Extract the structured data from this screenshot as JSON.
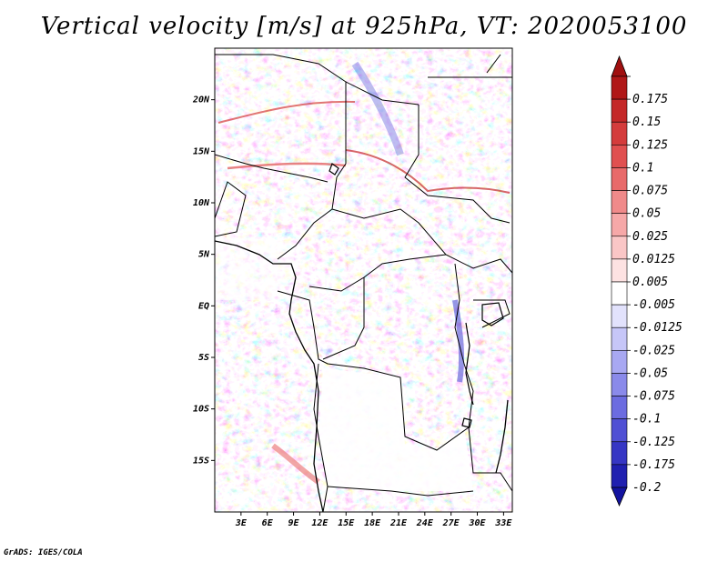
{
  "title": "Vertical velocity [m/s] at 925hPa, VT: 2020053100",
  "credit": "GrADS: IGES/COLA",
  "map": {
    "lon_range": [
      0,
      34
    ],
    "lat_range": [
      -20,
      25
    ],
    "lat_ticks": [
      {
        "lat": 20,
        "label": "20N"
      },
      {
        "lat": 15,
        "label": "15N"
      },
      {
        "lat": 10,
        "label": "10N"
      },
      {
        "lat": 5,
        "label": "5N"
      },
      {
        "lat": 0,
        "label": "EQ"
      },
      {
        "lat": -5,
        "label": "5S"
      },
      {
        "lat": -10,
        "label": "10S"
      },
      {
        "lat": -15,
        "label": "15S"
      }
    ],
    "lon_ticks": [
      {
        "lon": 3,
        "label": "3E"
      },
      {
        "lon": 6,
        "label": "6E"
      },
      {
        "lon": 9,
        "label": "9E"
      },
      {
        "lon": 12,
        "label": "12E"
      },
      {
        "lon": 15,
        "label": "15E"
      },
      {
        "lon": 18,
        "label": "18E"
      },
      {
        "lon": 21,
        "label": "21E"
      },
      {
        "lon": 24,
        "label": "24E"
      },
      {
        "lon": 27,
        "label": "27E"
      },
      {
        "lon": 30,
        "label": "30E"
      },
      {
        "lon": 33,
        "label": "33E"
      }
    ]
  },
  "colorbar": {
    "levels": [
      {
        "label": "0.175",
        "color": "#b01818"
      },
      {
        "label": "0.15",
        "color": "#c42828"
      },
      {
        "label": "0.125",
        "color": "#d43c3c"
      },
      {
        "label": "0.1",
        "color": "#e05050"
      },
      {
        "label": "0.075",
        "color": "#e86a6a"
      },
      {
        "label": "0.05",
        "color": "#f08a8a"
      },
      {
        "label": "0.025",
        "color": "#f6a8a8"
      },
      {
        "label": "0.0125",
        "color": "#fac6c6"
      },
      {
        "label": "0.005",
        "color": "#fde2e2"
      },
      {
        "label": "-0.005",
        "color": "#ffffff"
      },
      {
        "label": "-0.0125",
        "color": "#e2e2fc"
      },
      {
        "label": "-0.025",
        "color": "#c6c6f8"
      },
      {
        "label": "-0.05",
        "color": "#a8a8f2"
      },
      {
        "label": "-0.075",
        "color": "#8a8aea"
      },
      {
        "label": "-0.1",
        "color": "#6c6ce0"
      },
      {
        "label": "-0.125",
        "color": "#5050d4"
      },
      {
        "label": "-0.175",
        "color": "#3636c4"
      },
      {
        "label": "-0.2",
        "color": "#2020b0"
      }
    ],
    "top_cap_color": "#a01010",
    "bottom_cap_color": "#1414a0"
  }
}
